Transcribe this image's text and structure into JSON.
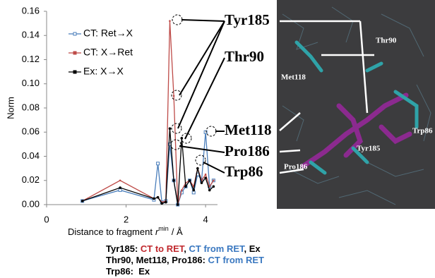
{
  "chart_data": {
    "type": "line",
    "y_label": "Norm",
    "x_label": [
      "Distance to fragment",
      "r",
      "min",
      "/ Å"
    ],
    "x": [
      0.9,
      1.85,
      2.7,
      2.8,
      2.9,
      3.0,
      3.1,
      3.2,
      3.3,
      3.4,
      3.5,
      3.6,
      3.7,
      3.8,
      3.9,
      4.0,
      4.1,
      4.2
    ],
    "series": [
      {
        "name": "CT: Ret→X",
        "color": "#4a7ebb",
        "values": [
          0.003,
          0.012,
          0.004,
          0.034,
          0.002,
          0.003,
          0.05,
          0.02,
          0.0,
          0.01,
          0.015,
          0.02,
          0.01,
          0.025,
          0.02,
          0.06,
          0.015,
          0.02
        ]
      },
      {
        "name": "CT: X→Ret",
        "color": "#be4b48",
        "values": [
          0.003,
          0.02,
          0.005,
          0.006,
          0.002,
          0.003,
          0.152,
          0.09,
          0.0,
          0.012,
          0.018,
          0.02,
          0.015,
          0.03,
          0.02,
          0.025,
          0.015,
          0.02
        ]
      },
      {
        "name": "Ex: X→X",
        "color": "#000000",
        "values": [
          0.003,
          0.014,
          0.005,
          0.006,
          0.001,
          0.002,
          0.063,
          0.02,
          0.0,
          0.055,
          0.015,
          0.02,
          0.012,
          0.03,
          0.018,
          0.022,
          0.012,
          0.015
        ]
      }
    ],
    "xlim": [
      0,
      4.3
    ],
    "xticks": [
      0,
      2,
      4
    ],
    "ylim": [
      0,
      0.16
    ],
    "yticks": [
      {
        "value": 0,
        "label": "0.00"
      },
      {
        "value": 0.02,
        "label": "0.02"
      },
      {
        "value": 0.04,
        "label": "0.04"
      },
      {
        "value": 0.06,
        "label": "0.06"
      },
      {
        "value": 0.08,
        "label": "0.08"
      },
      {
        "value": 0.1,
        "label": "0.10"
      },
      {
        "value": 0.12,
        "label": "0.12"
      },
      {
        "value": 0.14,
        "label": "0.14"
      },
      {
        "value": 0.16,
        "label": "0.16"
      }
    ],
    "annotations": [
      "Tyr185",
      "Thr90",
      "Met118",
      "Pro186",
      "Trp86"
    ]
  },
  "image_labels": [
    "Thr90",
    "Met118",
    "Trp86",
    "Tyr185",
    "Pro186"
  ],
  "caption": [
    [
      {
        "text": "Tyr185: ",
        "color": "#000000"
      },
      {
        "text": "CT to RET",
        "color": "#c0282d"
      },
      {
        "text": ", ",
        "color": "#000000"
      },
      {
        "text": "CT from RET",
        "color": "#3a78c0"
      },
      {
        "text": ", Ex",
        "color": "#000000"
      }
    ],
    [
      {
        "text": "Thr90, Met118, Pro186: ",
        "color": "#000000"
      },
      {
        "text": "CT from RET",
        "color": "#3a78c0"
      }
    ],
    [
      {
        "text": "Trp86:  Ex",
        "color": "#000000"
      }
    ]
  ]
}
